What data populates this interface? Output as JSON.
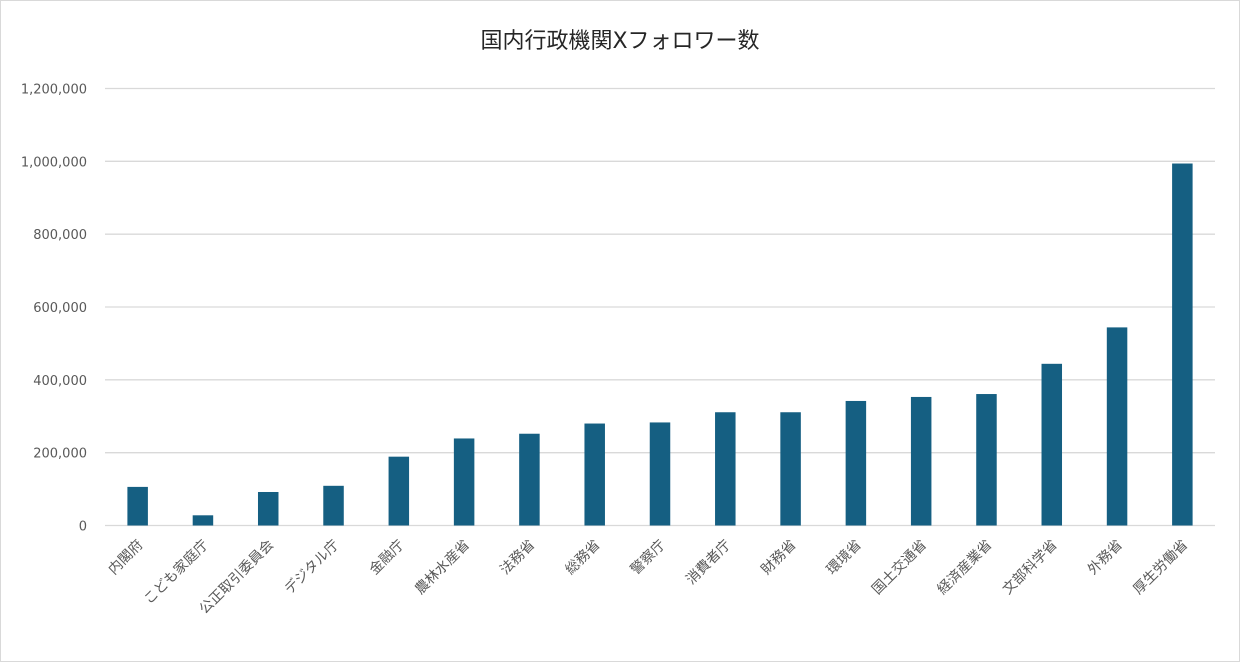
{
  "chart_data": {
    "type": "bar",
    "title": "国内行政機関Xフォロワー数",
    "xlabel": "",
    "ylabel": "",
    "ylim": [
      0,
      1200000
    ],
    "yticks": [
      0,
      200000,
      400000,
      600000,
      800000,
      1000000,
      1200000
    ],
    "ytick_labels": [
      "0",
      "200,000",
      "400,000",
      "600,000",
      "800,000",
      "1,000,000",
      "1,200,000"
    ],
    "grid": true,
    "legend": "none",
    "bar_color": "#155f82",
    "categories": [
      "内閣府",
      "こども家庭庁",
      "公正取引委員会",
      "デジタル庁",
      "金融庁",
      "農林水産省",
      "法務省",
      "総務省",
      "警察庁",
      "消費者庁",
      "財務省",
      "環境省",
      "国土交通省",
      "経済産業省",
      "文部科学省",
      "外務省",
      "厚生労働省"
    ],
    "values": [
      106000,
      28000,
      92000,
      109000,
      189000,
      239000,
      252000,
      280000,
      283000,
      311000,
      311000,
      342000,
      353000,
      361000,
      444000,
      544000,
      994000
    ]
  }
}
